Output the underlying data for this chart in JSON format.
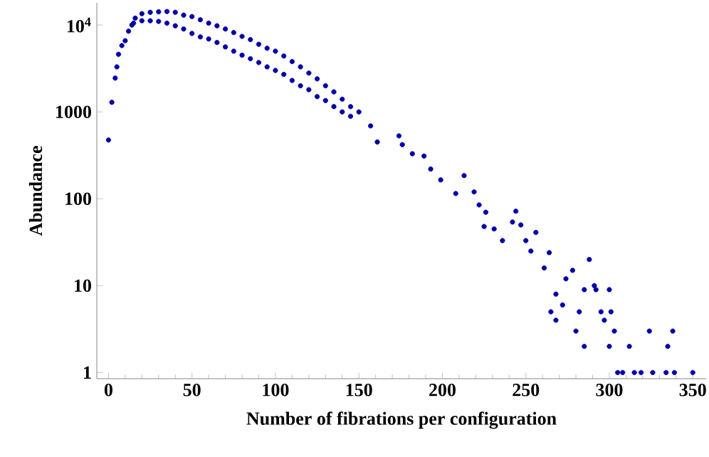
{
  "chart_data": {
    "type": "scatter",
    "xlabel": "Number of fibrations per configuration",
    "ylabel": "Abundance",
    "log": "y",
    "marker": "circle",
    "grid": false,
    "xlim": [
      -7,
      358
    ],
    "ylim": [
      0.85,
      18000
    ],
    "xticks": [
      0,
      50,
      100,
      150,
      200,
      250,
      300,
      350
    ],
    "yticks": [
      1,
      10,
      100,
      1000,
      {
        "value": 10000,
        "label": "10$^{4}$"
      }
    ],
    "series": [
      {
        "color": "#0000a8",
        "x": [
          0,
          2,
          4,
          5,
          6,
          8,
          10,
          12,
          14,
          16,
          20,
          25,
          30,
          35,
          40,
          45,
          50,
          55,
          60,
          65,
          70,
          75,
          80,
          85,
          90,
          95,
          100,
          105,
          110,
          115,
          120,
          125,
          130,
          135,
          140,
          145,
          15,
          20,
          25,
          30,
          35,
          40,
          45,
          50,
          55,
          60,
          65,
          70,
          75,
          80,
          85,
          90,
          95,
          100,
          105,
          110,
          115,
          120,
          125,
          130,
          135,
          140,
          145,
          150,
          157,
          161,
          174,
          176,
          182,
          189,
          193,
          199,
          208,
          213,
          219,
          222,
          226,
          225,
          231,
          236,
          242,
          244,
          247,
          250,
          253,
          256,
          261,
          264,
          265,
          268,
          268,
          272,
          274,
          278,
          280,
          282,
          285,
          285,
          288,
          291,
          292,
          295,
          297,
          300,
          301,
          300,
          303,
          305,
          308,
          312,
          315,
          319,
          324,
          326,
          334,
          335,
          338,
          339,
          350
        ],
        "values": [
          475,
          1290,
          2450,
          3300,
          4600,
          5800,
          6600,
          8500,
          10000,
          12000,
          13500,
          14000,
          14200,
          14300,
          14000,
          13000,
          12500,
          11500,
          10500,
          9800,
          9000,
          8200,
          7400,
          6800,
          6000,
          5400,
          5000,
          4400,
          3800,
          3300,
          2800,
          2400,
          2000,
          1700,
          1400,
          1150,
          10500,
          11200,
          11200,
          11000,
          10500,
          9800,
          9000,
          8000,
          7300,
          6900,
          6300,
          5600,
          5000,
          4500,
          4100,
          3700,
          3300,
          3000,
          2700,
          2300,
          2000,
          1800,
          1500,
          1350,
          1150,
          1000,
          890,
          1000,
          690,
          450,
          530,
          420,
          330,
          310,
          220,
          165,
          115,
          185,
          120,
          85,
          70,
          48,
          45,
          33,
          54,
          72,
          50,
          33,
          25,
          41,
          16,
          24,
          5,
          8,
          4,
          6,
          12,
          15,
          3,
          5,
          2,
          9,
          20,
          10,
          9,
          5,
          4,
          9,
          5,
          2,
          3,
          1,
          1,
          2,
          1,
          1,
          3,
          1,
          1,
          2,
          3,
          1,
          1
        ]
      }
    ]
  }
}
